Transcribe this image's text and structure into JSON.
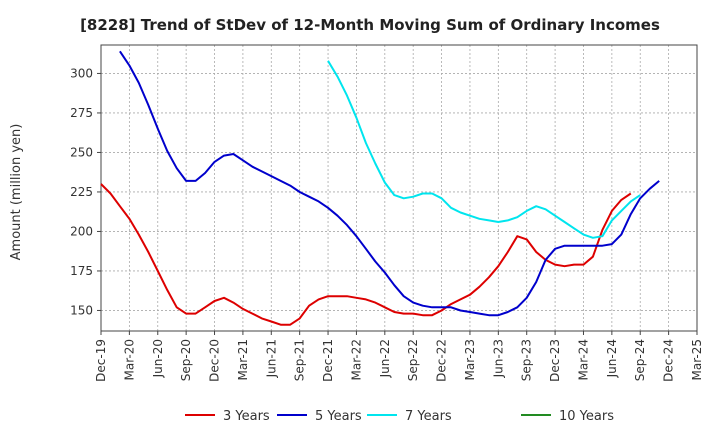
{
  "chart_data": {
    "type": "line",
    "title": "[8228]  Trend of StDev of 12-Month Moving Sum of Ordinary Incomes",
    "xlabel": "",
    "ylabel": "Amount (million yen)",
    "ylim": [
      137,
      318
    ],
    "yticks": [
      150,
      175,
      200,
      225,
      250,
      275,
      300
    ],
    "xticks": [
      "Dec-19",
      "Mar-20",
      "Jun-20",
      "Sep-20",
      "Dec-20",
      "Mar-21",
      "Jun-21",
      "Sep-21",
      "Dec-21",
      "Mar-22",
      "Jun-22",
      "Sep-22",
      "Dec-22",
      "Mar-23",
      "Jun-23",
      "Sep-23",
      "Dec-23",
      "Mar-24",
      "Jun-24",
      "Sep-24",
      "Dec-24",
      "Mar-25"
    ],
    "grid": true,
    "legend_position": "bottom",
    "series": [
      {
        "name": "3 Years",
        "color": "#dd0000",
        "start_index": 0,
        "values": [
          230,
          224,
          216,
          208,
          198,
          187,
          175,
          163,
          152,
          148,
          148,
          152,
          156,
          158,
          155,
          151,
          148,
          145,
          143,
          141,
          141,
          145,
          153,
          157,
          159,
          159,
          159,
          158,
          157,
          155,
          152,
          149,
          148,
          148,
          147,
          147,
          150,
          154,
          157,
          160,
          165,
          171,
          178,
          187,
          197,
          195,
          187,
          182,
          179,
          178,
          179,
          179,
          184,
          201,
          213,
          220,
          224
        ]
      },
      {
        "name": "5 Years",
        "color": "#0000cc",
        "start_index": 2,
        "values": [
          314,
          305,
          294,
          280,
          265,
          251,
          240,
          232,
          232,
          237,
          244,
          248,
          249,
          245,
          241,
          238,
          235,
          232,
          229,
          225,
          222,
          219,
          215,
          210,
          204,
          197,
          189,
          181,
          174,
          166,
          159,
          155,
          153,
          152,
          152,
          152,
          150,
          149,
          148,
          147,
          147,
          149,
          152,
          158,
          168,
          182,
          189,
          191,
          191,
          191,
          191,
          191,
          192,
          198,
          211,
          221,
          227,
          232
        ]
      },
      {
        "name": "7 Years",
        "color": "#00e5ee",
        "start_index": 24,
        "values": [
          308,
          298,
          286,
          272,
          256,
          243,
          231,
          223,
          221,
          222,
          224,
          224,
          221,
          215,
          212,
          210,
          208,
          207,
          206,
          207,
          209,
          213,
          216,
          214,
          210,
          206,
          202,
          198,
          196,
          197,
          207,
          213,
          219,
          223
        ]
      },
      {
        "name": "10 Years",
        "color": "#228b22",
        "start_index": 0,
        "values": []
      }
    ]
  }
}
